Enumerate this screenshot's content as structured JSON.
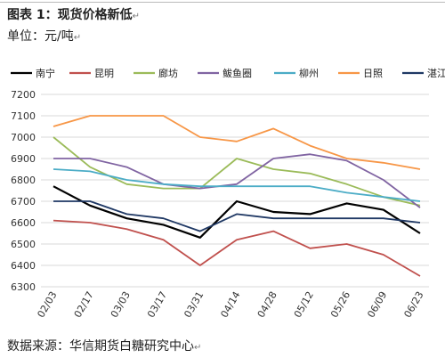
{
  "header": {
    "title": "图表 1：现货价格新低",
    "unit": "单位：元/吨",
    "source": "数据来源：华信期货白糖研究中心",
    "para_mark": "↵"
  },
  "chart_data": {
    "type": "line",
    "title": "图表 1：现货价格新低",
    "xlabel": "",
    "ylabel": "元/吨",
    "x": [
      "02/03",
      "02/17",
      "03/03",
      "03/17",
      "03/31",
      "04/14",
      "04/28",
      "05/12",
      "05/26",
      "06/09",
      "06/23"
    ],
    "x_ticks": [
      "02/03",
      "02/17",
      "03/03",
      "03/17",
      "03/31",
      "04/14",
      "04/28",
      "05/12",
      "05/26",
      "06/09",
      "06/23"
    ],
    "ylim": [
      6300,
      7200
    ],
    "y_ticks": [
      6300,
      6400,
      6500,
      6600,
      6700,
      6800,
      6900,
      7000,
      7100,
      7200
    ],
    "grid": true,
    "legend": "top",
    "series": [
      {
        "name": "南宁",
        "color": "#000000",
        "values": [
          6770,
          6680,
          6620,
          6590,
          6530,
          6700,
          6650,
          6640,
          6690,
          6660,
          6550
        ]
      },
      {
        "name": "昆明",
        "color": "#c0504d",
        "values": [
          6610,
          6600,
          6570,
          6520,
          6400,
          6520,
          6560,
          6480,
          6500,
          6450,
          6350
        ]
      },
      {
        "name": "廊坊",
        "color": "#9bbb59",
        "values": [
          7000,
          6860,
          6780,
          6760,
          6760,
          6900,
          6850,
          6830,
          6780,
          6720,
          6680
        ]
      },
      {
        "name": "鲅鱼圈",
        "color": "#8064a2",
        "values": [
          6900,
          6900,
          6860,
          6780,
          6760,
          6780,
          6900,
          6920,
          6890,
          6800,
          6670
        ]
      },
      {
        "name": "柳州",
        "color": "#4bacc6",
        "values": [
          6850,
          6840,
          6800,
          6780,
          6770,
          6770,
          6770,
          6770,
          6740,
          6720,
          6700
        ]
      },
      {
        "name": "日照",
        "color": "#f79646",
        "values": [
          7050,
          7100,
          7100,
          7100,
          7000,
          6980,
          7040,
          6960,
          6900,
          6880,
          6850
        ]
      },
      {
        "name": "湛江",
        "color": "#1f3864",
        "values": [
          6700,
          6700,
          6640,
          6620,
          6560,
          6640,
          6620,
          6620,
          6620,
          6620,
          6600
        ]
      }
    ]
  }
}
